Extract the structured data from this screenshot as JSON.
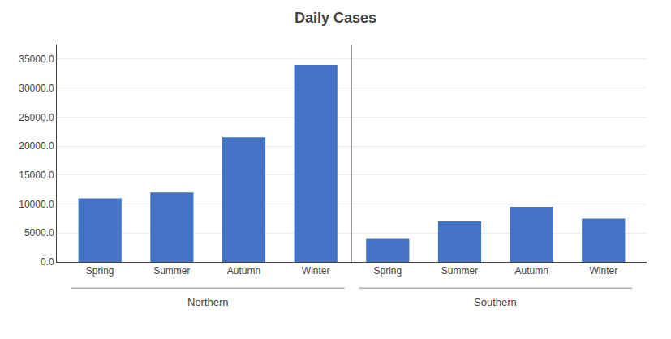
{
  "chart_data": {
    "type": "bar",
    "title": "Daily Cases",
    "categories": [
      "Spring",
      "Summer",
      "Autumn",
      "Winter",
      "Spring",
      "Summer",
      "Autumn",
      "Winter"
    ],
    "values": [
      11000,
      12000,
      21500,
      34000,
      4000,
      7000,
      9500,
      7500
    ],
    "color": "#4472C4",
    "ylim": [
      0,
      37500
    ],
    "yticks": [
      {
        "value": 0,
        "label": "0.0"
      },
      {
        "value": 5000,
        "label": "5000.0"
      },
      {
        "value": 10000,
        "label": "10000.0"
      },
      {
        "value": 15000,
        "label": "15000.0"
      },
      {
        "value": 20000,
        "label": "20000.0"
      },
      {
        "value": 25000,
        "label": "25000.0"
      },
      {
        "value": 30000,
        "label": "30000.0"
      },
      {
        "value": 35000,
        "label": "35000.0"
      }
    ],
    "grid": true,
    "annotations": [
      "Northern",
      "Southern"
    ]
  }
}
